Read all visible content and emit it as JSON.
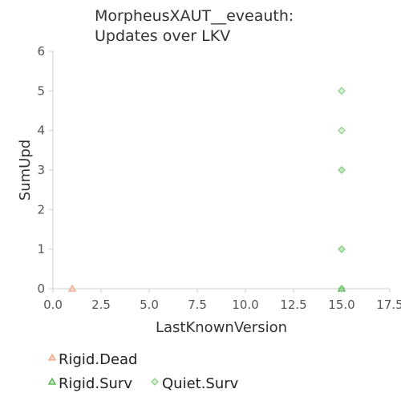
{
  "chart_data": {
    "type": "scatter",
    "title_lines": [
      "MorpheusXAUT__eveauth:",
      "Updates over LKV"
    ],
    "xlabel": "LastKnownVersion",
    "ylabel": "SumUpd",
    "xlim": [
      0,
      17.5
    ],
    "ylim": [
      0,
      6
    ],
    "x_ticks": [
      "0.0",
      "2.5",
      "5.0",
      "7.5",
      "10.0",
      "12.5",
      "15.0",
      "17.5"
    ],
    "y_ticks": [
      "0",
      "1",
      "2",
      "3",
      "4",
      "5",
      "6"
    ],
    "grid": false,
    "legend_position": "bottom-left",
    "series": [
      {
        "name": "Rigid.Dead",
        "marker": "triangle",
        "color": "#f4a582",
        "points": [
          {
            "x": 1,
            "y": 0
          }
        ]
      },
      {
        "name": "Rigid.Surv",
        "marker": "triangle",
        "color": "#4daf4a",
        "points": [
          {
            "x": 15,
            "y": 0
          }
        ]
      },
      {
        "name": "Quiet.Surv",
        "marker": "diamond",
        "color": "#8fd18a",
        "points": [
          {
            "x": 15,
            "y": 5
          },
          {
            "x": 15,
            "y": 4
          },
          {
            "x": 15,
            "y": 3
          },
          {
            "x": 15,
            "y": 3
          },
          {
            "x": 15,
            "y": 1
          },
          {
            "x": 15,
            "y": 1
          },
          {
            "x": 15,
            "y": 0
          }
        ]
      }
    ]
  }
}
